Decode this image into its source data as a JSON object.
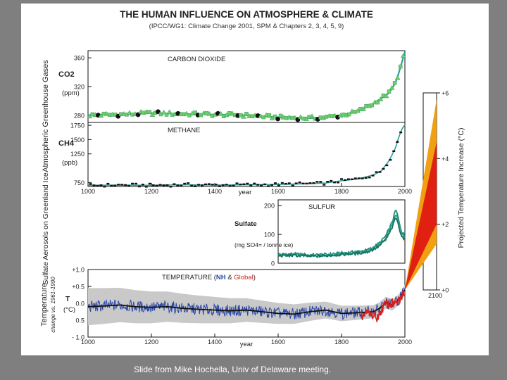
{
  "caption": "Slide from Mike Hochella, Univ of Delaware meeting.",
  "colors": {
    "background": "#7f7f7f",
    "panel": "#ffffff",
    "co2_data": "#2aa098",
    "co2_markers": "#6ccf6c",
    "nh_line": "#2a46a8",
    "global_line": "#d42020",
    "temp_band": "#c9c9c9",
    "projection_outer": "#f0a010",
    "projection_inner": "#e02010"
  },
  "chart_data": [
    {
      "type": "line",
      "panel": "co2",
      "title": "THE HUMAN INFLUENCE ON ATMOSPHERE & CLIMATE",
      "subtitle": "(IPCC/WG1: Climate Change 2001, SPM & Chapters 2, 3, 4, 5, 9)",
      "group_ylabel": "Atmospheric Greenhouse Gases",
      "label": "CARBON DIOXIDE",
      "ylabel_symbol": "CO2",
      "ylabel_unit": "(ppm)",
      "yticks": [
        "360",
        "320",
        "280"
      ],
      "ylim": [
        270,
        370
      ],
      "xlim": [
        1000,
        2000
      ],
      "x": [
        1000,
        1100,
        1200,
        1300,
        1400,
        1500,
        1600,
        1700,
        1750,
        1800,
        1850,
        1900,
        1950,
        1970,
        1980,
        1990,
        2000
      ],
      "values": [
        280,
        281,
        283,
        282,
        281,
        280,
        277,
        276,
        277,
        280,
        285,
        296,
        311,
        325,
        338,
        353,
        368
      ]
    },
    {
      "type": "line",
      "panel": "ch4",
      "label": "METHANE",
      "ylabel_symbol": "CH4",
      "ylabel_unit": "(ppb)",
      "yticks": [
        "1750",
        "1500",
        "1250",
        "750"
      ],
      "ylim": [
        680,
        1800
      ],
      "xlim": [
        1000,
        2000
      ],
      "xticks": [
        "1000",
        "1200",
        "1400",
        "1600",
        "1800",
        "2000"
      ],
      "xlabel": "year",
      "x": [
        1000,
        1100,
        1200,
        1300,
        1400,
        1500,
        1600,
        1700,
        1750,
        1800,
        1850,
        1900,
        1925,
        1950,
        1970,
        1980,
        1990,
        2000
      ],
      "values": [
        700,
        705,
        700,
        710,
        705,
        710,
        715,
        730,
        740,
        780,
        810,
        880,
        950,
        1130,
        1350,
        1530,
        1680,
        1760
      ]
    },
    {
      "type": "line",
      "panel": "sulfate",
      "group_ylabel": "Sulfate Aerosols on Greenland Ice",
      "label": "SULFUR",
      "ylabel_name": "Sulfate",
      "ylabel_unit": "(mg SO4= / tonne ice)",
      "yticks": [
        "200",
        "100",
        "0"
      ],
      "ylim": [
        0,
        220
      ],
      "xlim": [
        1600,
        2000
      ],
      "x": [
        1600,
        1650,
        1700,
        1750,
        1800,
        1850,
        1880,
        1900,
        1920,
        1940,
        1955,
        1965,
        1970,
        1975,
        1980,
        1990,
        2000
      ],
      "values": [
        30,
        32,
        28,
        30,
        35,
        40,
        45,
        55,
        70,
        95,
        130,
        160,
        185,
        175,
        150,
        110,
        95
      ]
    },
    {
      "type": "line",
      "panel": "temperature",
      "label_prefix": "TEMPERATURE",
      "label_nh": "NH",
      "label_amp": "&",
      "label_global": "Global",
      "ylabel_group": "Temperature",
      "ylabel_sub": "change vs. 1961-1990",
      "ylabel_symbol": "T",
      "ylabel_unit": "(°C)",
      "yticks": [
        "+1.0",
        "+0.5",
        "0.0",
        "0.5",
        "- 1.0"
      ],
      "ylim": [
        -1.0,
        1.0
      ],
      "xlim": [
        1000,
        2000
      ],
      "xticks": [
        "1000",
        "1200",
        "1400",
        "1600",
        "1800",
        "2000"
      ],
      "xlabel": "year",
      "series": [
        {
          "name": "NH",
          "x": [
            1000,
            1050,
            1100,
            1150,
            1200,
            1250,
            1300,
            1350,
            1400,
            1450,
            1500,
            1550,
            1600,
            1650,
            1700,
            1750,
            1800,
            1850,
            1900,
            1920,
            1940,
            1960,
            1980,
            2000
          ],
          "values": [
            -0.1,
            -0.08,
            -0.05,
            -0.1,
            -0.12,
            -0.1,
            -0.15,
            -0.18,
            -0.2,
            -0.22,
            -0.2,
            -0.25,
            -0.3,
            -0.32,
            -0.25,
            -0.2,
            -0.3,
            -0.28,
            -0.25,
            -0.15,
            0.02,
            -0.05,
            0.1,
            0.4
          ]
        },
        {
          "name": "Global",
          "x": [
            1860,
            1880,
            1900,
            1910,
            1920,
            1940,
            1950,
            1960,
            1970,
            1980,
            1990,
            2000
          ],
          "values": [
            -0.4,
            -0.3,
            -0.35,
            -0.45,
            -0.3,
            0.0,
            -0.05,
            0.0,
            -0.05,
            0.05,
            0.2,
            0.35
          ]
        }
      ]
    },
    {
      "type": "area",
      "panel": "projection",
      "ylabel": "Projected Temperature Increase (°C)",
      "yticks": [
        "+6",
        "+4",
        "+2",
        "+0"
      ],
      "xticks": [
        "2100"
      ],
      "ylim": [
        0,
        6
      ],
      "x": [
        2000,
        2100
      ],
      "outer_range": [
        [
          0,
          0
        ],
        [
          1.4,
          5.8
        ]
      ],
      "inner_range": [
        [
          0,
          0
        ],
        [
          2.0,
          4.5
        ]
      ]
    }
  ]
}
